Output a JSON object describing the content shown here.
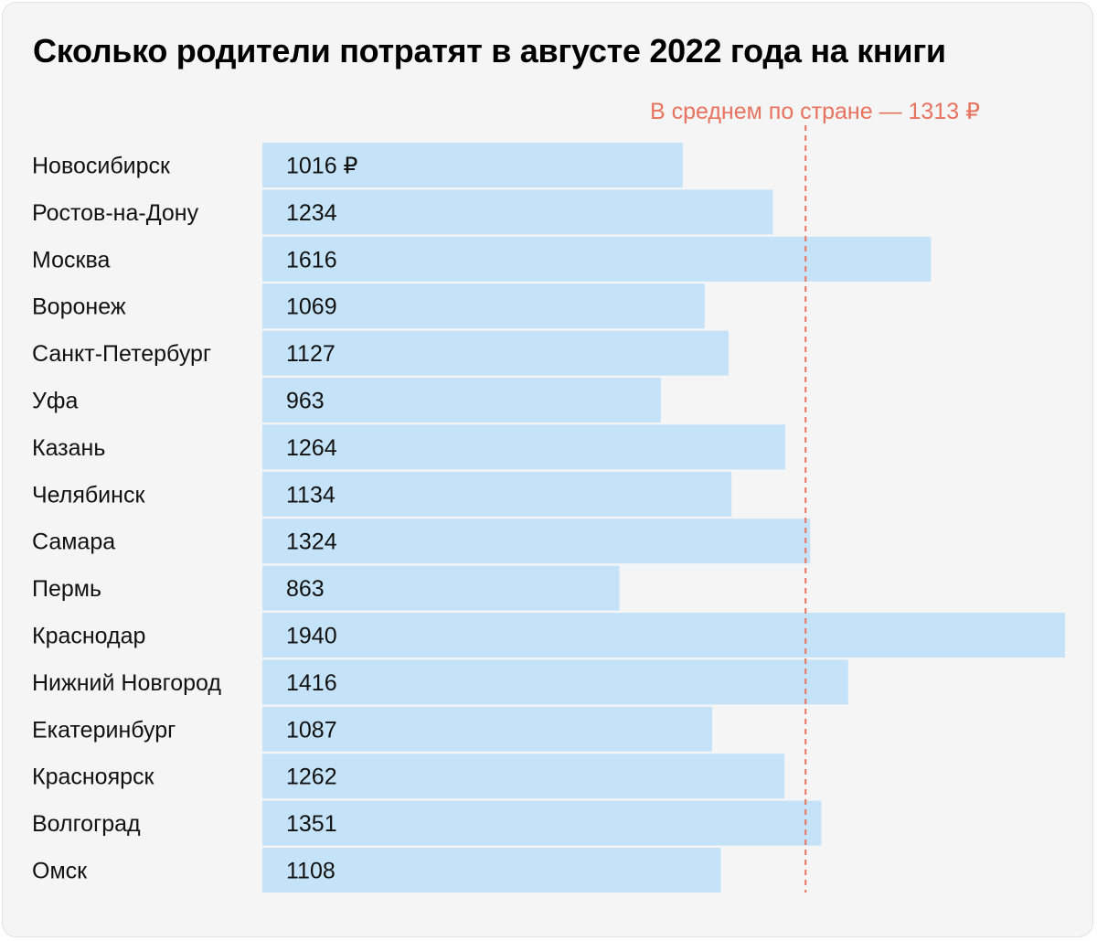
{
  "chart_data": {
    "type": "bar",
    "orientation": "horizontal",
    "title": "Сколько родители потратят в августе 2022 года на книги",
    "categories": [
      "Новосибирск",
      "Ростов-на-Дону",
      "Москва",
      "Воронеж",
      "Санкт-Петербург",
      "Уфа",
      "Казань",
      "Челябинск",
      "Самара",
      "Пермь",
      "Краснодар",
      "Нижний Новгород",
      "Екатеринбург",
      "Красноярск",
      "Волгоград",
      "Омск"
    ],
    "values": [
      1016,
      1234,
      1616,
      1069,
      1127,
      963,
      1264,
      1134,
      1324,
      863,
      1940,
      1416,
      1087,
      1262,
      1351,
      1108
    ],
    "value_labels": [
      "1016 ₽",
      "1234",
      "1616",
      "1069",
      "1127",
      "963",
      "1264",
      "1134",
      "1324",
      "863",
      "1940",
      "1416",
      "1087",
      "1262",
      "1351",
      "1108"
    ],
    "reference_line": {
      "value": 1313,
      "label": "В среднем по стране — 1313 ₽"
    },
    "xlim": [
      0,
      1940
    ],
    "grid": false,
    "legend": "none"
  },
  "colors": {
    "background": "#f5f5f5",
    "bar": "#c5e3f8",
    "reference_line": "#e8735f",
    "text": "#111111"
  }
}
